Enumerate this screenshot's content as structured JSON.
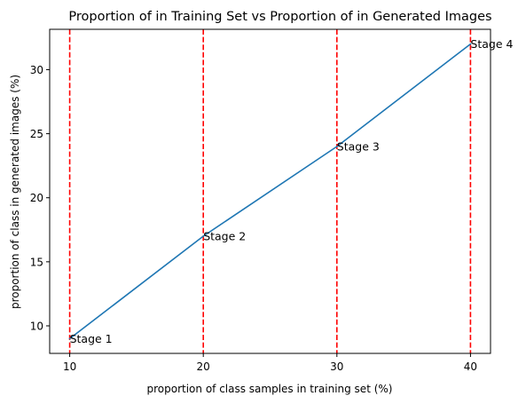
{
  "chart_data": {
    "type": "line",
    "title": "Proportion of in Training Set vs Proportion of in Generated Images",
    "xlabel": "proportion of class samples in training set (%)",
    "ylabel": "proportion of class in generated images (%)",
    "x": [
      10,
      20,
      30,
      40
    ],
    "series": [
      {
        "values": [
          9,
          17,
          24,
          32
        ],
        "color": "#1f77b4"
      }
    ],
    "x_ticks": [
      10,
      20,
      30,
      40
    ],
    "y_ticks": [
      10,
      15,
      20,
      25,
      30
    ],
    "xlim": [
      8.5,
      41.5
    ],
    "ylim": [
      7.85,
      33.15
    ],
    "vlines": {
      "x": [
        10,
        20,
        30,
        40
      ],
      "color": "#ff0000",
      "style": "dashed"
    },
    "annotations": [
      {
        "text": "Stage 1",
        "x": 10,
        "y": 9
      },
      {
        "text": "Stage 2",
        "x": 20,
        "y": 17
      },
      {
        "text": "Stage 3",
        "x": 30,
        "y": 24
      },
      {
        "text": "Stage 4",
        "x": 40,
        "y": 32
      }
    ],
    "grid": false,
    "legend": false
  }
}
